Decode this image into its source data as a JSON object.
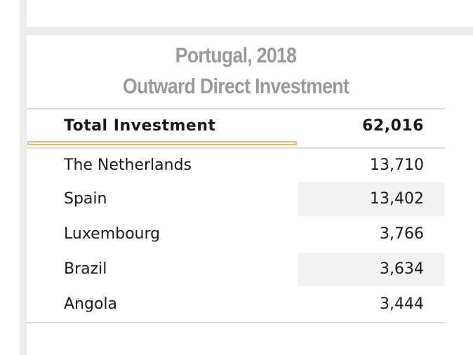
{
  "title": {
    "line1": "Portugal, 2018",
    "line2": "Outward Direct Investment"
  },
  "total": {
    "label": "Total Investment",
    "value": "62,016"
  },
  "rows": [
    {
      "label": "The Netherlands",
      "value": "13,710"
    },
    {
      "label": "Spain",
      "value": "13,402"
    },
    {
      "label": "Luxembourg",
      "value": "3,766"
    },
    {
      "label": "Brazil",
      "value": "3,634"
    },
    {
      "label": "Angola",
      "value": "3,444"
    }
  ],
  "colors": {
    "title": "#9a9a9a",
    "focus_outline": "#f4b66a",
    "shaded_cell": "#f2f2f2",
    "rule": "#dcdcdc"
  }
}
